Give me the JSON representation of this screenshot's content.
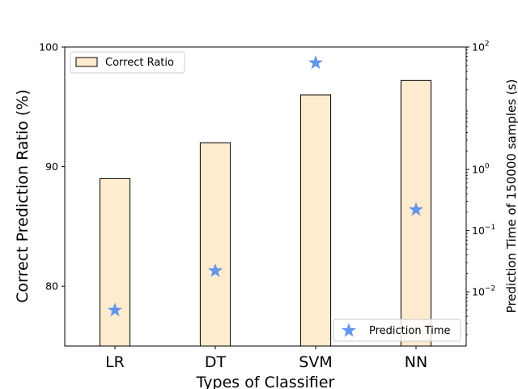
{
  "chart_data": {
    "type": "bar",
    "categories": [
      "LR",
      "DT",
      "SVM",
      "NN"
    ],
    "xlabel": "Types of Classifier",
    "ylabel_left": "Correct Prediction Ratio (%)",
    "ylabel_right": "Prediction Time of 150000 samples (s)",
    "ylim_left": [
      75,
      100
    ],
    "yticks_left": [
      80,
      90,
      100
    ],
    "ylim_right_log": [
      0.0013,
      100
    ],
    "yticks_right": [
      {
        "value": 0.01,
        "base": "10",
        "exp": "−2"
      },
      {
        "value": 0.1,
        "base": "10",
        "exp": "−1"
      },
      {
        "value": 1,
        "base": "10",
        "exp": "0"
      },
      {
        "value": 100,
        "base": "10",
        "exp": "2"
      }
    ],
    "series": [
      {
        "name": "Correct Ratio",
        "type": "bar",
        "axis": "left",
        "values": [
          89.0,
          92.0,
          96.0,
          97.2
        ],
        "color": "#ffebcd",
        "edge": "#000000"
      },
      {
        "name": "Prediction Time",
        "type": "scatter",
        "marker": "star",
        "axis": "right",
        "values": [
          0.005,
          0.022,
          55,
          0.22
        ],
        "color": "#6495ed"
      }
    ],
    "legend_bar_placement": "upper-left",
    "legend_marker_placement": "lower-right",
    "grid": false
  }
}
